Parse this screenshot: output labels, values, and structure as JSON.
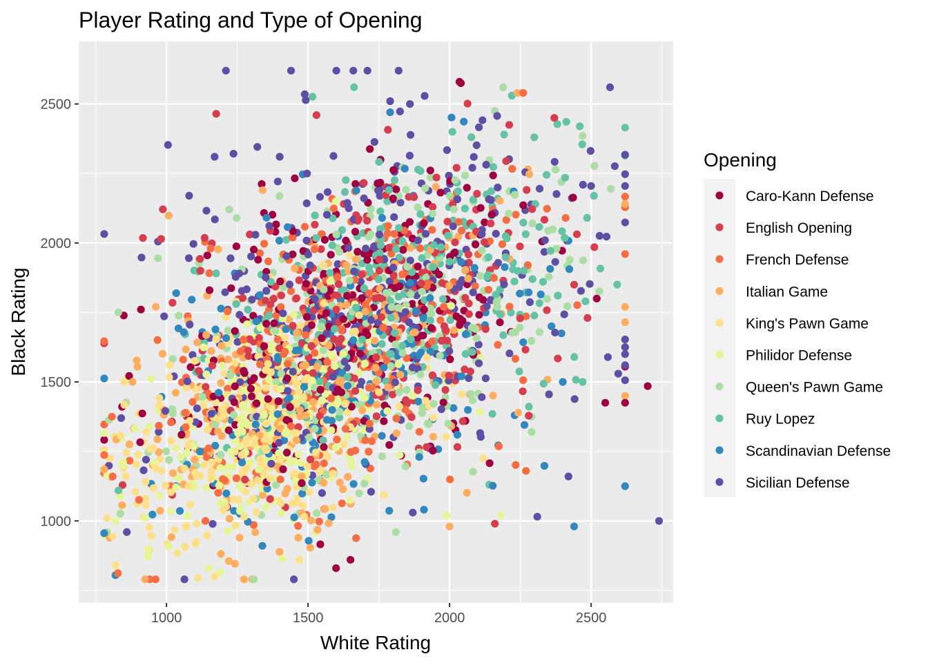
{
  "chart_data": {
    "type": "scatter",
    "title": "Player Rating and Type of Opening",
    "xlabel": "White Rating",
    "ylabel": "Black Rating",
    "xlim": [
      690,
      2790
    ],
    "ylim": [
      705,
      2725
    ],
    "x_ticks": [
      1000,
      1500,
      2000,
      2500
    ],
    "y_ticks": [
      1000,
      1500,
      2000,
      2500
    ],
    "grid": true,
    "legend": {
      "title": "Opening",
      "position": "right"
    },
    "series": [
      {
        "name": "Caro-Kann Defense",
        "color": "#9E0142",
        "center": [
          1650,
          1700
        ],
        "spread": [
          330,
          330
        ],
        "count": 260,
        "points": [
          [
            2040,
            2575
          ],
          [
            2035,
            2580
          ],
          [
            2550,
            1425
          ],
          [
            2700,
            1485
          ],
          [
            2520,
            1800
          ],
          [
            2620,
            1425
          ],
          [
            2620,
            1555
          ],
          [
            1650,
            860
          ]
        ]
      },
      {
        "name": "English Opening",
        "color": "#D53E4F",
        "center": [
          1700,
          1720
        ],
        "spread": [
          340,
          330
        ],
        "count": 240,
        "points": [
          [
            1530,
            2460
          ],
          [
            2370,
            2450
          ],
          [
            2160,
            990
          ],
          [
            2440,
            1850
          ],
          [
            1120,
            1900
          ]
        ]
      },
      {
        "name": "French Defense",
        "color": "#F46D43",
        "center": [
          1600,
          1620
        ],
        "spread": [
          340,
          330
        ],
        "count": 270,
        "points": [
          [
            810,
            1160
          ],
          [
            2260,
            2540
          ],
          [
            2410,
            2090
          ],
          [
            2270,
            1180
          ]
        ]
      },
      {
        "name": "Italian Game",
        "color": "#FDAE61",
        "center": [
          1450,
          1450
        ],
        "spread": [
          330,
          320
        ],
        "count": 260,
        "points": [
          [
            2240,
            2540
          ],
          [
            2620,
            2140
          ],
          [
            2620,
            1770
          ],
          [
            2620,
            1715
          ],
          [
            2620,
            1450
          ],
          [
            1340,
            2190
          ],
          [
            880,
            1500
          ],
          [
            2000,
            980
          ]
        ]
      },
      {
        "name": "King's Pawn Game",
        "color": "#FEE08B",
        "center": [
          1300,
          1330
        ],
        "spread": [
          250,
          250
        ],
        "count": 280,
        "points": [
          [
            790,
            1010
          ],
          [
            800,
            1225
          ],
          [
            850,
            1500
          ],
          [
            2120,
            1225
          ],
          [
            820,
            840
          ],
          [
            1170,
            800
          ],
          [
            1920,
            1550
          ]
        ]
      },
      {
        "name": "Philidor Defense",
        "color": "#E6F598",
        "center": [
          1380,
          1370
        ],
        "spread": [
          250,
          230
        ],
        "count": 240,
        "points": [
          [
            2180,
            1020
          ],
          [
            1990,
            1020
          ],
          [
            820,
            1000
          ],
          [
            1150,
            830
          ]
        ]
      },
      {
        "name": "Queen's Pawn Game",
        "color": "#ABDDA4",
        "center": [
          1700,
          1650
        ],
        "spread": [
          350,
          340
        ],
        "count": 280,
        "points": [
          [
            790,
            960
          ],
          [
            830,
            1750
          ],
          [
            2160,
            2475
          ],
          [
            2470,
            2385
          ],
          [
            970,
            1945
          ],
          [
            2290,
            1375
          ],
          [
            2290,
            1320
          ],
          [
            1810,
            960
          ]
        ]
      },
      {
        "name": "Ruy Lopez",
        "color": "#66C2A5",
        "center": [
          1850,
          1880
        ],
        "spread": [
          330,
          300
        ],
        "count": 230,
        "points": [
          [
            2220,
            2530
          ],
          [
            2460,
            2420
          ],
          [
            2470,
            1500
          ],
          [
            2480,
            1790
          ],
          [
            2140,
            1130
          ],
          [
            2330,
            1860
          ],
          [
            2010,
            2400
          ]
        ]
      },
      {
        "name": "Scandinavian Defense",
        "color": "#3288BD",
        "center": [
          1600,
          1550
        ],
        "spread": [
          360,
          340
        ],
        "count": 190,
        "points": [
          [
            820,
            805
          ],
          [
            2620,
            1125
          ],
          [
            2440,
            980
          ],
          [
            2230,
            1380
          ],
          [
            1790,
            2470
          ],
          [
            2400,
            1500
          ],
          [
            2360,
            1700
          ]
        ]
      },
      {
        "name": "Sicilian Defense",
        "color": "#5E4FA2",
        "center": [
          1750,
          1800
        ],
        "spread": [
          360,
          360
        ],
        "count": 330,
        "points": [
          [
            1210,
            2620
          ],
          [
            1440,
            2620
          ],
          [
            1600,
            2620
          ],
          [
            1660,
            2620
          ],
          [
            1710,
            2620
          ],
          [
            1820,
            2620
          ],
          [
            1790,
            2510
          ],
          [
            1860,
            2500
          ],
          [
            1170,
            2310
          ],
          [
            1080,
            2170
          ],
          [
            970,
            2005
          ],
          [
            2620,
            2205
          ],
          [
            2620,
            1625
          ],
          [
            2620,
            1600
          ],
          [
            2620,
            1560
          ],
          [
            2500,
            2205
          ],
          [
            2420,
            1160
          ],
          [
            2310,
            1015
          ],
          [
            1400,
            2310
          ],
          [
            1870,
            1030
          ],
          [
            1450,
            790
          ],
          [
            2740,
            1000
          ],
          [
            840,
            1370
          ],
          [
            860,
            960
          ]
        ]
      }
    ]
  }
}
